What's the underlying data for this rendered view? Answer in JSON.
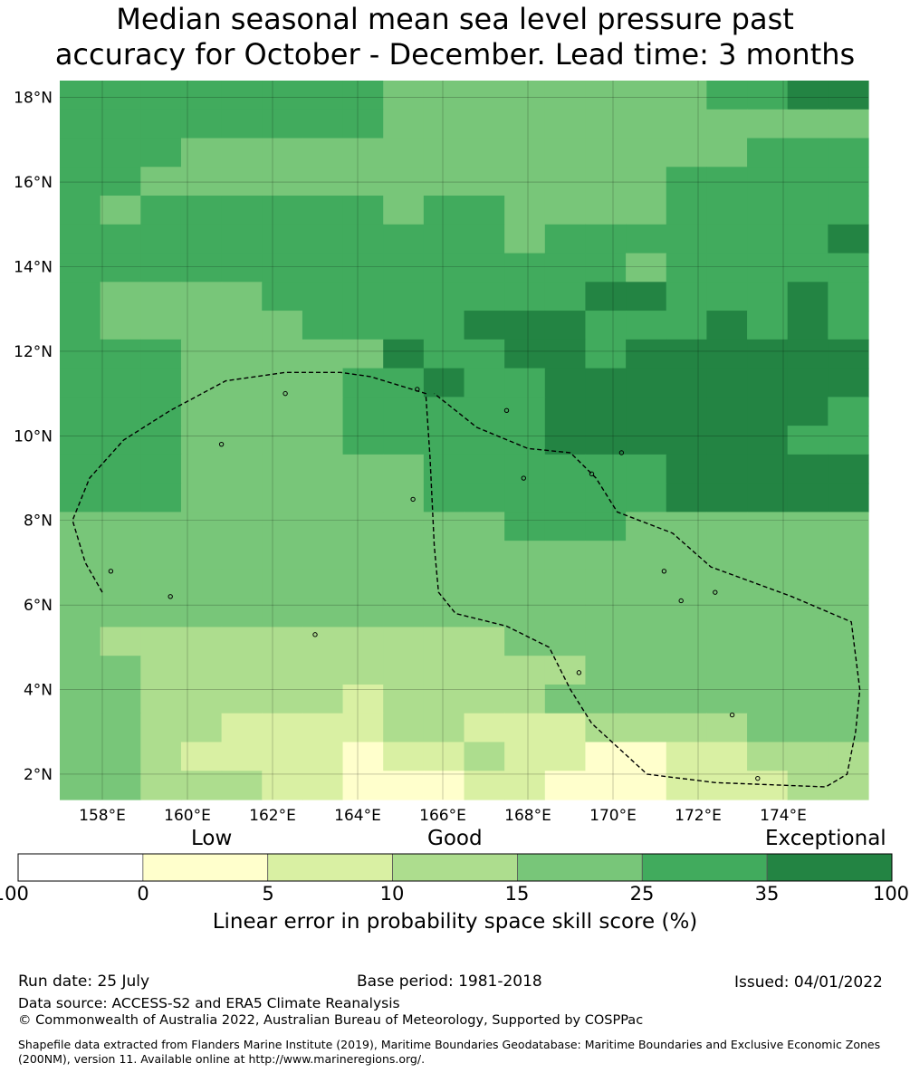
{
  "title_line1": "Median seasonal mean sea level pressure past",
  "title_line2": "accuracy for October - December. Lead time: 3 months",
  "map": {
    "lon_range": [
      157,
      176
    ],
    "lat_range": [
      1.4,
      18.4
    ],
    "lat_ticks": [
      "18°N",
      "16°N",
      "14°N",
      "12°N",
      "10°N",
      "8°N",
      "6°N",
      "4°N",
      "2°N"
    ],
    "lat_tick_values": [
      18,
      16,
      14,
      12,
      10,
      8,
      6,
      4,
      2
    ],
    "lon_ticks": [
      "158°E",
      "160°E",
      "162°E",
      "164°E",
      "166°E",
      "168°E",
      "170°E",
      "172°E",
      "174°E"
    ],
    "lon_tick_values": [
      158,
      160,
      162,
      164,
      166,
      168,
      170,
      172,
      174
    ],
    "cell_size_deg": 0.833,
    "class_colors": [
      "#ffffff",
      "#ffffcc",
      "#d9f0a3",
      "#addd8e",
      "#78c679",
      "#41ab5d",
      "#238443"
    ],
    "skill_class_grid": [
      "55555555444444445566",
      "55555555444444444444",
      "55544444444444444555",
      "55444444444444455555",
      "54555555455444455555",
      "55555555555455555556",
      "55555555555555455555",
      "54444555555556655565",
      "54444455556665556565",
      "55544444655665666666",
      "55544445565566666666",
      "55544445555566666665",
      "55544445555566666655",
      "55544444455555566666",
      "55544444455555566666",
      "44444444444555444444",
      "44444444444444444444",
      "44444444444444444444",
      "44444444444444444444",
      "43333333333444444444",
      "44333333333334444444",
      "44333332333344444444",
      "44332222332223333444",
      "44322221223221122333",
      "44333221112211122233"
    ],
    "eez_boundary": [
      [
        158.0,
        6.3
      ],
      [
        157.6,
        7.0
      ],
      [
        157.3,
        8.0
      ],
      [
        157.7,
        9.0
      ],
      [
        158.5,
        9.9
      ],
      [
        159.6,
        10.6
      ],
      [
        160.9,
        11.3
      ],
      [
        162.3,
        11.5
      ],
      [
        163.6,
        11.5
      ],
      [
        164.3,
        11.4
      ],
      [
        165.6,
        11.0
      ],
      [
        165.7,
        9.5
      ],
      [
        165.8,
        7.4
      ],
      [
        165.9,
        6.3
      ],
      [
        166.3,
        5.8
      ],
      [
        167.5,
        5.5
      ],
      [
        168.5,
        5.0
      ],
      [
        169.0,
        4.0
      ],
      [
        169.5,
        3.2
      ],
      [
        170.8,
        2.0
      ],
      [
        172.4,
        1.8
      ],
      [
        175.0,
        1.7
      ],
      [
        175.5,
        2.0
      ],
      [
        175.7,
        3.0
      ],
      [
        175.8,
        4.0
      ],
      [
        175.6,
        5.6
      ],
      [
        174.2,
        6.2
      ],
      [
        172.3,
        6.9
      ],
      [
        171.4,
        7.7
      ],
      [
        170.1,
        8.2
      ],
      [
        169.6,
        9.0
      ],
      [
        169.0,
        9.6
      ],
      [
        168.0,
        9.7
      ],
      [
        166.8,
        10.2
      ],
      [
        165.8,
        11.0
      ]
    ]
  },
  "colorbar": {
    "category_labels": [
      "Low",
      "Good",
      "Exceptional"
    ],
    "tick_labels": [
      "-100",
      "0",
      "5",
      "10",
      "15",
      "25",
      "35",
      "100"
    ],
    "colors": [
      "#ffffff",
      "#ffffcc",
      "#d9f0a3",
      "#addd8e",
      "#78c679",
      "#41ab5d",
      "#238443"
    ],
    "title": "Linear error in probability space skill score (%)"
  },
  "footer": {
    "run_date": "Run date: 25 July",
    "base_period": "Base period: 1981-2018",
    "issued": "Issued: 04/01/2022",
    "data_source": "Data source: ACCESS-S2 and ERA5 Climate Reanalysis",
    "copyright": "© Commonwealth of Australia 2022, Australian Bureau of Meteorology, Supported by COSPPac",
    "shapefile": "Shapefile data extracted from Flanders Marine Institute (2019), Maritime Boundaries Geodatabase: Maritime Boundaries and Exclusive Economic Zones (200NM), version 11. Available online at http://www.marineregions.org/."
  }
}
